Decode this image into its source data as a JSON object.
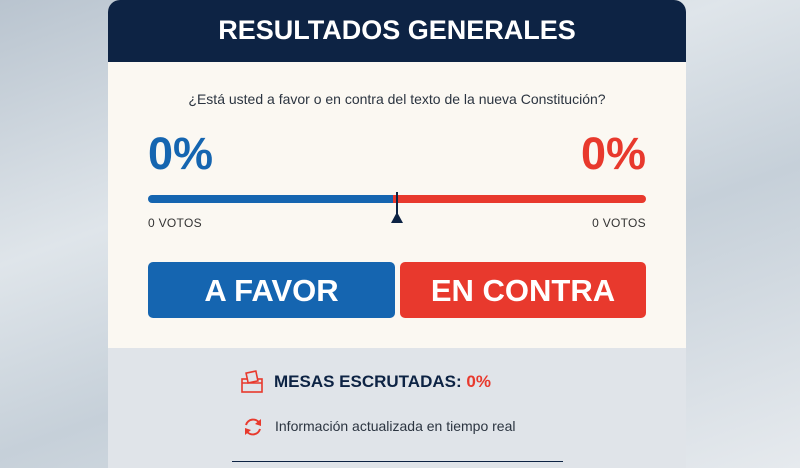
{
  "header": {
    "title": "RESULTADOS GENERALES"
  },
  "question": "¿Está usted a favor o en contra del texto de la nueva Constitución?",
  "favor": {
    "percent": "0%",
    "votes": "0 VOTOS",
    "button": "A FAVOR"
  },
  "contra": {
    "percent": "0%",
    "votes": "0 VOTOS",
    "button": "EN CONTRA"
  },
  "footer": {
    "mesas_label": "MESAS ESCRUTADAS:",
    "mesas_value": "0%",
    "update_note": "Información actualizada en tiempo real"
  }
}
